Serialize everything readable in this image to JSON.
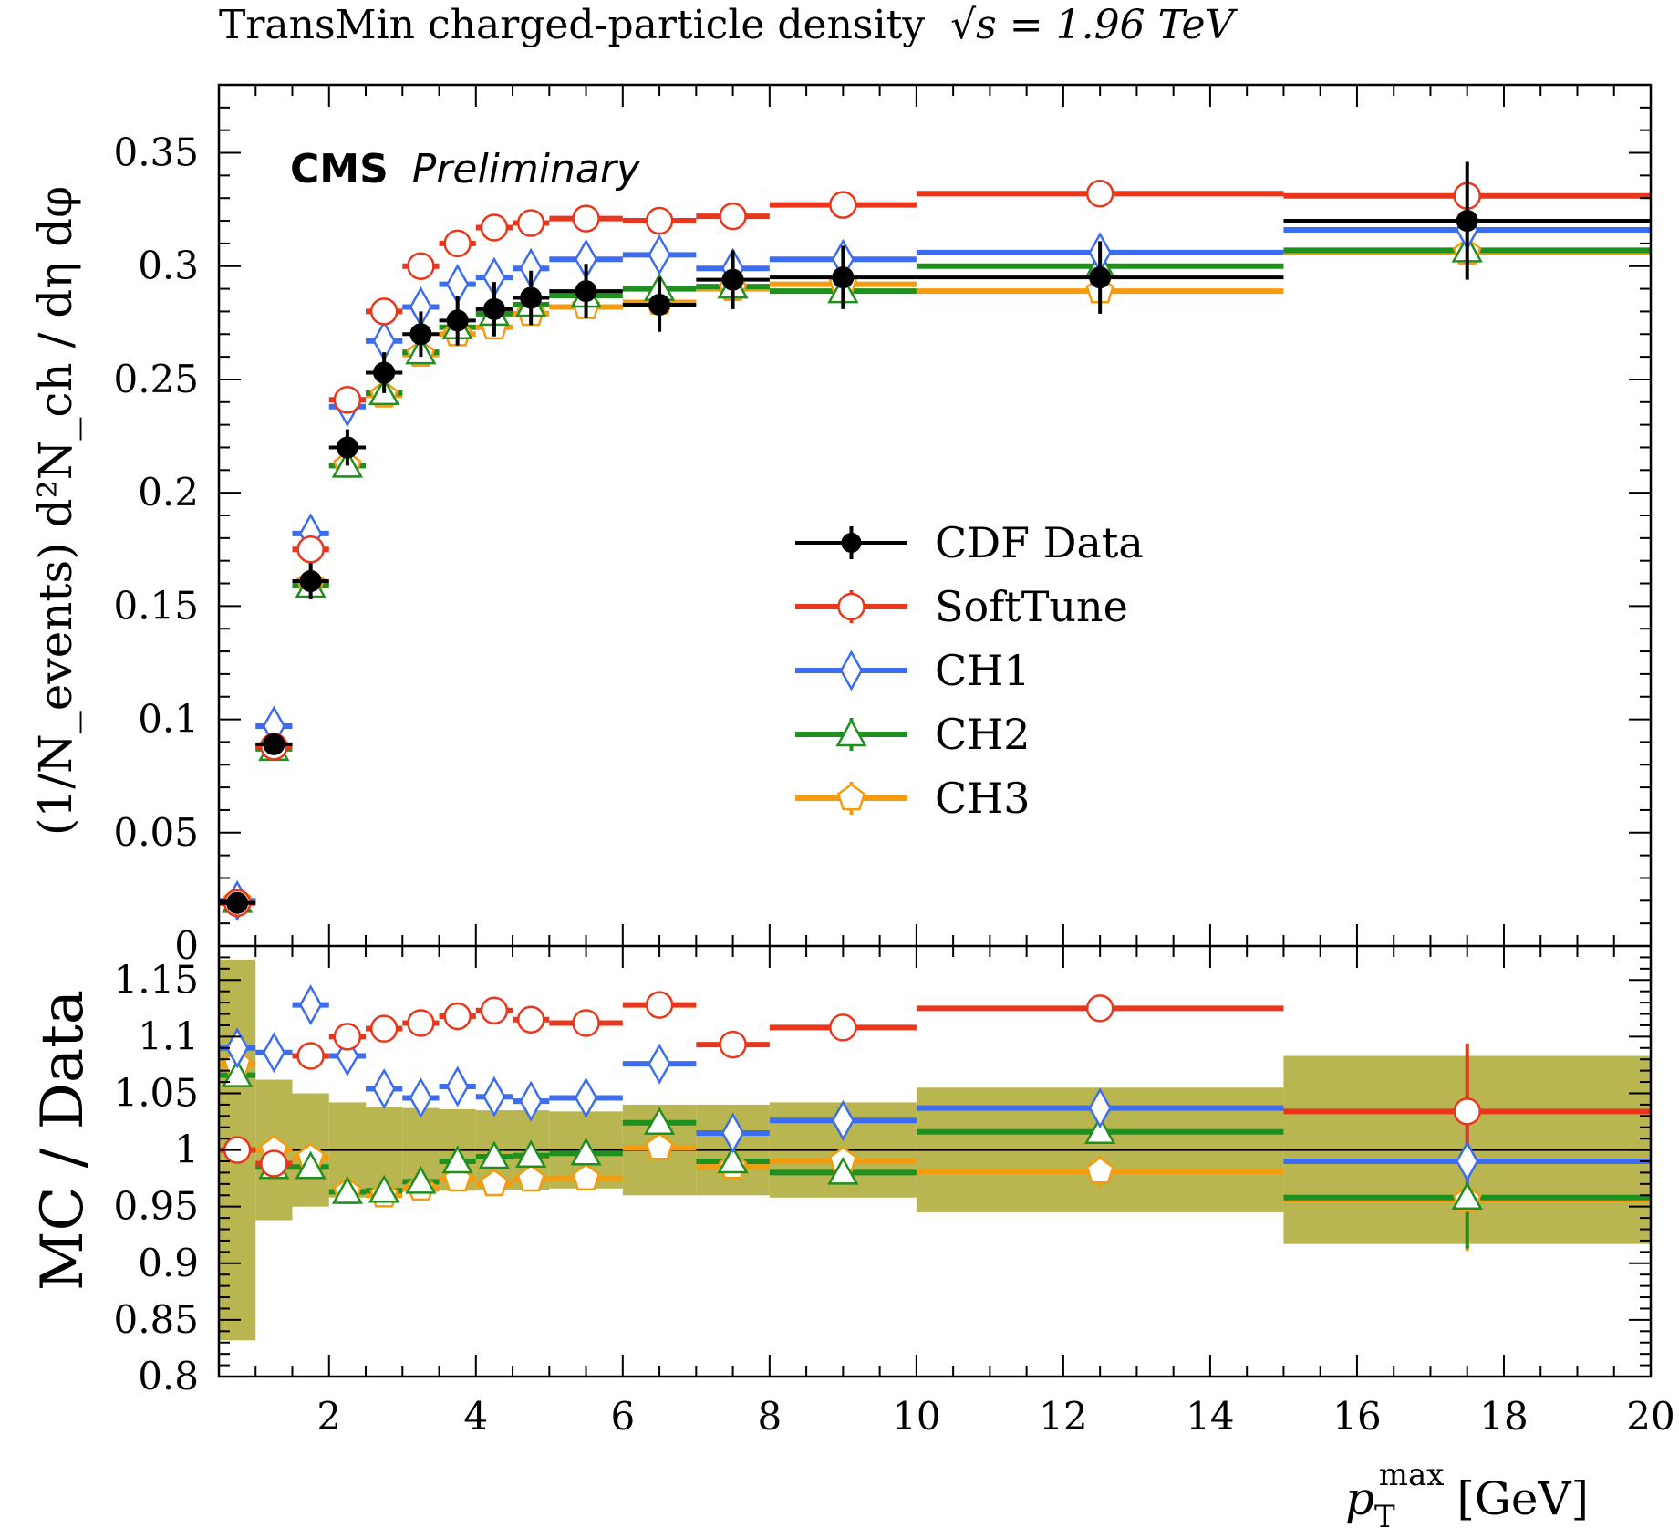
{
  "chart_data": {
    "type": "line",
    "title": "TransMin charged-particle density",
    "title_math": "√s = 1.96 TeV",
    "annotation": {
      "bold": "CMS",
      "italic": "Preliminary"
    },
    "xlabel_main": "p",
    "xlabel_sub": "T",
    "xlabel_sup": "max",
    "xlabel_unit": "[GeV]",
    "ylabel": "(1/N_events) d²N_ch / dη dφ",
    "ratio_ylabel": "MC / Data",
    "xlim": [
      0.5,
      20
    ],
    "ylim": [
      0,
      0.38
    ],
    "ratio_ylim": [
      0.8,
      1.18
    ],
    "x_ticks": [
      "2",
      "4",
      "6",
      "8",
      "10",
      "12",
      "14",
      "16",
      "18",
      "20"
    ],
    "y_ticks": [
      "0",
      "0.05",
      "0.1",
      "0.15",
      "0.2",
      "0.25",
      "0.3",
      "0.35"
    ],
    "ratio_ticks": [
      "0.8",
      "0.85",
      "0.9",
      "0.95",
      "1",
      "1.05",
      "1.1",
      "1.15"
    ],
    "legend_position": "center-right",
    "colors": {
      "data": "#000000",
      "softtune": "#e8371c",
      "ch1": "#3c6df0",
      "ch2": "#1f8f1f",
      "ch3": "#f59b0f",
      "band": "#b9b651"
    },
    "bin_edges": [
      0.5,
      1,
      1.5,
      2,
      2.5,
      3,
      3.5,
      4,
      4.5,
      5,
      6,
      7,
      8,
      10,
      15,
      20
    ],
    "series": [
      {
        "name": "CDF Data",
        "key": "data",
        "marker": "filled-circle",
        "values": [
          0.019,
          0.089,
          0.161,
          0.22,
          0.253,
          0.27,
          0.276,
          0.281,
          0.286,
          0.289,
          0.283,
          0.294,
          0.295,
          0.295,
          0.32
        ],
        "errors": [
          0.003,
          0.004,
          0.008,
          0.008,
          0.009,
          0.01,
          0.011,
          0.012,
          0.012,
          0.012,
          0.012,
          0.013,
          0.014,
          0.016,
          0.026
        ]
      },
      {
        "name": "SoftTune",
        "key": "softtune",
        "marker": "open-circle",
        "values": [
          0.019,
          0.088,
          0.175,
          0.241,
          0.28,
          0.3,
          0.31,
          0.317,
          0.319,
          0.321,
          0.32,
          0.322,
          0.327,
          0.332,
          0.331
        ],
        "errors": [
          0.001,
          0.001,
          0.002,
          0.002,
          0.002,
          0.002,
          0.002,
          0.002,
          0.002,
          0.002,
          0.002,
          0.002,
          0.002,
          0.003,
          0.003
        ]
      },
      {
        "name": "CH1",
        "key": "ch1",
        "marker": "open-diamond",
        "values": [
          0.02,
          0.097,
          0.182,
          0.238,
          0.267,
          0.282,
          0.292,
          0.295,
          0.299,
          0.303,
          0.305,
          0.299,
          0.303,
          0.306,
          0.316
        ],
        "errors": [
          0.001,
          0.001,
          0.002,
          0.002,
          0.002,
          0.002,
          0.002,
          0.002,
          0.002,
          0.002,
          0.002,
          0.002,
          0.002,
          0.003,
          0.003
        ]
      },
      {
        "name": "CH2",
        "key": "ch2",
        "marker": "open-triangle",
        "values": [
          0.02,
          0.087,
          0.159,
          0.212,
          0.244,
          0.262,
          0.273,
          0.279,
          0.283,
          0.287,
          0.29,
          0.291,
          0.289,
          0.3,
          0.307
        ],
        "errors": [
          0.001,
          0.001,
          0.002,
          0.002,
          0.002,
          0.002,
          0.002,
          0.002,
          0.002,
          0.002,
          0.002,
          0.002,
          0.002,
          0.003,
          0.003
        ]
      },
      {
        "name": "CH3",
        "key": "ch3",
        "marker": "open-pentagon",
        "values": [
          0.02,
          0.088,
          0.16,
          0.212,
          0.243,
          0.261,
          0.27,
          0.273,
          0.279,
          0.282,
          0.284,
          0.29,
          0.292,
          0.289,
          0.306
        ],
        "errors": [
          0.001,
          0.001,
          0.002,
          0.002,
          0.002,
          0.002,
          0.002,
          0.002,
          0.002,
          0.002,
          0.002,
          0.002,
          0.002,
          0.003,
          0.003
        ]
      }
    ],
    "ratio": {
      "band_halfwidth": [
        0.168,
        0.062,
        0.05,
        0.042,
        0.038,
        0.037,
        0.036,
        0.035,
        0.035,
        0.034,
        0.04,
        0.04,
        0.042,
        0.055,
        0.083
      ],
      "series": [
        {
          "key": "softtune",
          "values": [
            1.0,
            0.988,
            1.083,
            1.1,
            1.107,
            1.112,
            1.118,
            1.123,
            1.115,
            1.112,
            1.128,
            1.093,
            1.108,
            1.125,
            1.034
          ],
          "errors": [
            0.004,
            0.004,
            0.005,
            0.005,
            0.005,
            0.005,
            0.005,
            0.006,
            0.006,
            0.006,
            0.006,
            0.006,
            0.007,
            0.01,
            0.06
          ]
        },
        {
          "key": "ch1",
          "values": [
            1.09,
            1.086,
            1.128,
            1.083,
            1.054,
            1.046,
            1.056,
            1.047,
            1.043,
            1.046,
            1.076,
            1.015,
            1.026,
            1.037,
            0.99
          ],
          "errors": [
            0.004,
            0.004,
            0.005,
            0.005,
            0.005,
            0.005,
            0.005,
            0.006,
            0.006,
            0.006,
            0.006,
            0.006,
            0.007,
            0.01,
            0.04
          ]
        },
        {
          "key": "ch2",
          "values": [
            1.066,
            0.985,
            0.985,
            0.963,
            0.964,
            0.972,
            0.99,
            0.994,
            0.995,
            0.997,
            1.024,
            0.99,
            0.98,
            1.016,
            0.958
          ],
          "errors": [
            0.004,
            0.004,
            0.005,
            0.005,
            0.005,
            0.005,
            0.005,
            0.006,
            0.006,
            0.006,
            0.006,
            0.006,
            0.007,
            0.01,
            0.045
          ]
        },
        {
          "key": "ch3",
          "values": [
            1.076,
            1.0,
            0.993,
            0.963,
            0.96,
            0.966,
            0.974,
            0.97,
            0.974,
            0.975,
            1.002,
            0.985,
            0.99,
            0.981,
            0.956
          ],
          "errors": [
            0.004,
            0.004,
            0.005,
            0.005,
            0.005,
            0.005,
            0.005,
            0.006,
            0.006,
            0.006,
            0.006,
            0.006,
            0.007,
            0.014,
            0.045
          ]
        }
      ]
    }
  }
}
